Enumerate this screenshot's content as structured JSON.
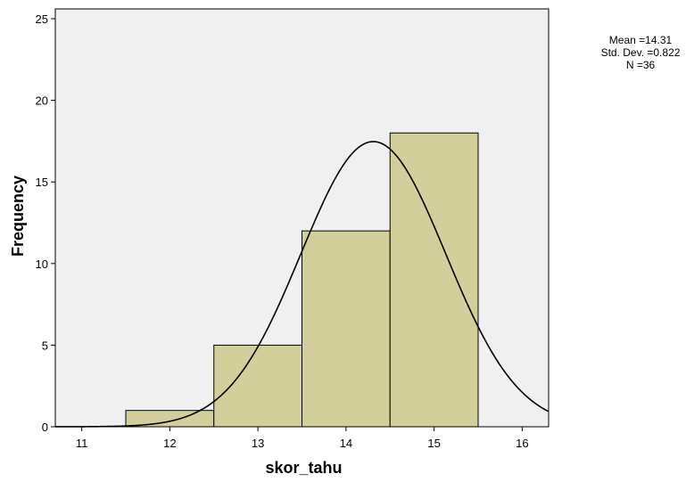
{
  "chart_data": {
    "type": "bar",
    "chart_subtype": "histogram",
    "xlabel": "skor_tahu",
    "ylabel": "Frequency",
    "xlim": [
      10.7,
      16.3
    ],
    "ylim": [
      0,
      25.6
    ],
    "x_ticks": [
      "11",
      "12",
      "13",
      "14",
      "15",
      "16"
    ],
    "y_ticks": [
      "0",
      "5",
      "10",
      "15",
      "20",
      "25"
    ],
    "bins": [
      {
        "center": 12,
        "width": 1,
        "value": 1
      },
      {
        "center": 13,
        "width": 1,
        "value": 5
      },
      {
        "center": 14,
        "width": 1,
        "value": 12
      },
      {
        "center": 15,
        "width": 1,
        "value": 18
      }
    ],
    "normal_curve": {
      "mean": 14.31,
      "std_dev": 0.822,
      "n": 36,
      "bin_width": 1
    },
    "grid": false,
    "stats_box": {
      "position": "top-right",
      "lines": [
        "Mean =14.31",
        "Std. Dev. =0.822",
        "N =36"
      ]
    },
    "colors": {
      "plot_background": "#f0f0f0",
      "bar_fill": "#d3cf9b",
      "bar_stroke": "#000000",
      "curve_stroke": "#000000"
    }
  }
}
